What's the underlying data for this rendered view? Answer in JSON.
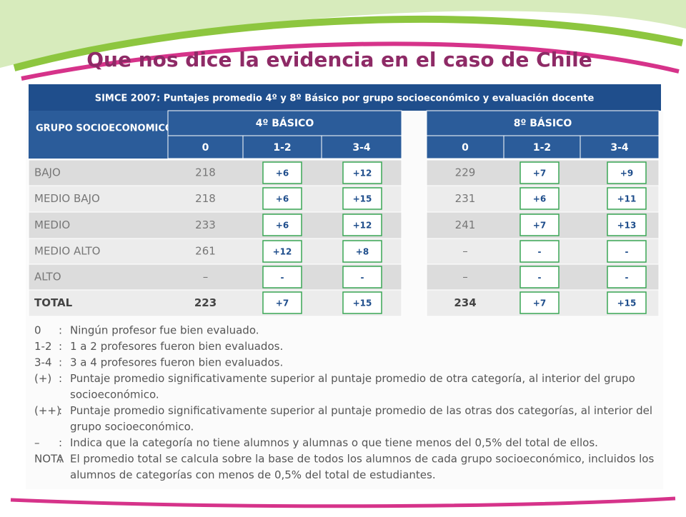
{
  "header": {
    "title": "Que nos dice la evidencia en el caso de Chile",
    "banner": "SIMCE 2007: Puntajes promedio 4º y 8º Básico por grupo socioeconómico y evaluación docente"
  },
  "table": {
    "group_header": "GRUPO SOCIOECONOMICO",
    "columns": [
      "0",
      "1-2",
      "3-4"
    ],
    "row_labels": [
      "BAJO",
      "MEDIO BAJO",
      "MEDIO",
      "MEDIO ALTO",
      "ALTO",
      "TOTAL"
    ],
    "blocks": [
      {
        "title": "4º BÁSICO",
        "zero": [
          "218",
          "218",
          "233",
          "261",
          "–",
          "223"
        ],
        "d12": [
          "+6",
          "+6",
          "+6",
          "+12",
          "-",
          "+7"
        ],
        "d34": [
          "+12",
          "+15",
          "+12",
          "+8",
          "-",
          "+15"
        ]
      },
      {
        "title": "8º BÁSICO",
        "zero": [
          "229",
          "231",
          "241",
          "–",
          "–",
          "234"
        ],
        "d12": [
          "+7",
          "+6",
          "+7",
          "-",
          "-",
          "+7"
        ],
        "d34": [
          "+9",
          "+11",
          "+13",
          "-",
          "-",
          "+15"
        ]
      }
    ]
  },
  "legend": [
    {
      "key": "0",
      "text": [
        "Ningún profesor fue bien evaluado."
      ]
    },
    {
      "key": "1-2",
      "text": [
        "1 a 2 profesores fueron bien evaluados."
      ]
    },
    {
      "key": "3-4",
      "text": [
        "3 a 4 profesores fueron bien evaluados."
      ]
    },
    {
      "key": "(+)",
      "text": [
        "Puntaje promedio significativamente superior al puntaje promedio de otra categoría, al interior del grupo",
        "socioeconómico."
      ]
    },
    {
      "key": "(++)",
      "text": [
        "Puntaje promedio significativamente superior al puntaje promedio de las otras dos categorías, al interior del",
        "grupo socioeconómico."
      ]
    },
    {
      "key": "–",
      "text": [
        "Indica que la categoría no tiene alumnos y alumnas o que tiene menos del 0,5% del total de ellos."
      ]
    },
    {
      "key": "NOTA",
      "text": [
        "El promedio total se calcula sobre la base de todos los alumnos de cada grupo socioeconómico, incluidos los",
        "alumnos de categorías con menos de 0,5% del total de estudiantes."
      ]
    }
  ]
}
